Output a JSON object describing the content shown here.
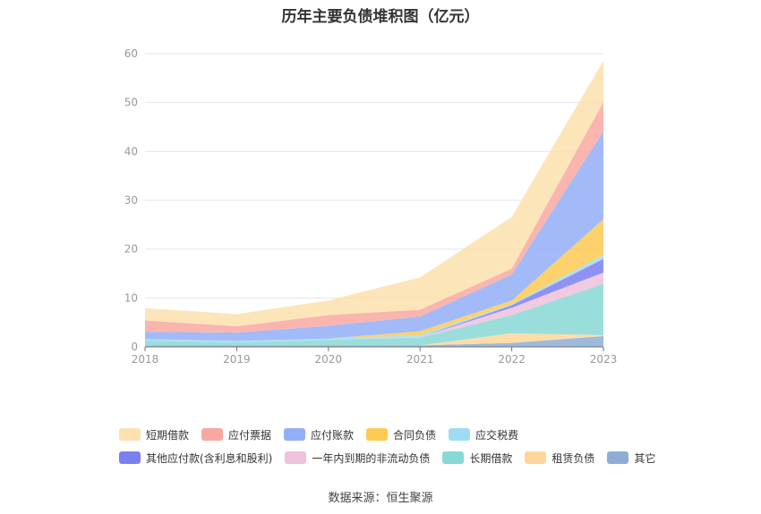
{
  "title": "历年主要负债堆积图（亿元）",
  "source": "数据来源：恒生聚源",
  "chart_data": {
    "type": "area",
    "stacked": true,
    "x": [
      "2018",
      "2019",
      "2020",
      "2021",
      "2022",
      "2023"
    ],
    "ylim": [
      0,
      60
    ],
    "yticks": [
      0,
      10,
      20,
      30,
      40,
      50,
      60
    ],
    "grid": true,
    "legend_position": "bottom",
    "series": [
      {
        "name": "其它",
        "color": "#8eadd6",
        "values": [
          0.3,
          0.3,
          0.3,
          0.3,
          0.8,
          2.2
        ]
      },
      {
        "name": "租赁负债",
        "color": "#fdd79a",
        "values": [
          0,
          0,
          0,
          0,
          2.0,
          0.2
        ]
      },
      {
        "name": "长期借款",
        "color": "#88d8d5",
        "values": [
          1.0,
          0.6,
          1.1,
          1.6,
          3.7,
          10.5
        ]
      },
      {
        "name": "一年内到期的非流动负债",
        "color": "#eec1dd",
        "values": [
          0,
          0,
          0,
          0.1,
          1.5,
          2.3
        ]
      },
      {
        "name": "其他应付款(含利息和股利)",
        "color": "#7b7ff0",
        "values": [
          0,
          0,
          0,
          0,
          0.5,
          2.8
        ]
      },
      {
        "name": "应交税费",
        "color": "#9fdcf3",
        "values": [
          0.3,
          0.3,
          0.3,
          0.4,
          0.2,
          0.8
        ]
      },
      {
        "name": "合同负债",
        "color": "#fdca52",
        "values": [
          0,
          0,
          0,
          0.8,
          0.8,
          7.3
        ]
      },
      {
        "name": "应付账款",
        "color": "#93aef8",
        "values": [
          1.5,
          1.7,
          2.6,
          3.0,
          5.3,
          18.0
        ]
      },
      {
        "name": "应付票据",
        "color": "#f8a8a0",
        "values": [
          2.3,
          1.3,
          2.2,
          1.4,
          1.2,
          6.0
        ]
      },
      {
        "name": "短期借款",
        "color": "#fde1ae",
        "values": [
          2.5,
          2.5,
          3.0,
          6.6,
          10.6,
          8.5
        ]
      }
    ],
    "legend_order": [
      "短期借款",
      "应付票据",
      "应付账款",
      "合同负债",
      "应交税费",
      "其他应付款(含利息和股利)",
      "一年内到期的非流动负债",
      "长期借款",
      "租赁负债",
      "其它"
    ],
    "legend_rows": [
      5,
      5
    ]
  }
}
